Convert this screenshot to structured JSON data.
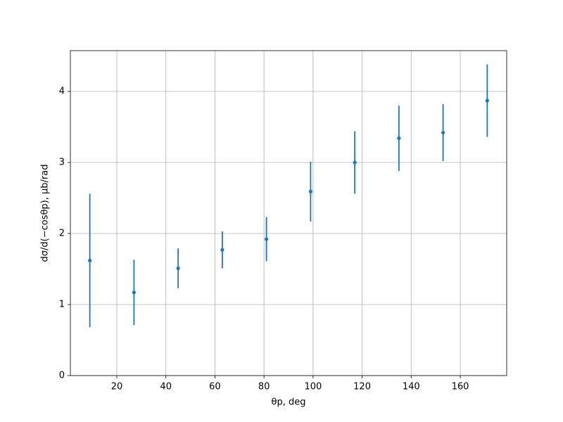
{
  "chart_data": {
    "type": "errorbar",
    "x_label": "θp, deg",
    "y_label": "dσ/d(−cosθp), μb/rad",
    "x": [
      9,
      27,
      45,
      63,
      81,
      99,
      117,
      135,
      153,
      171
    ],
    "series": [
      {
        "color": "#1f77b4",
        "values": [
          1.62,
          1.17,
          1.51,
          1.77,
          1.92,
          2.59,
          3.0,
          3.34,
          3.42,
          3.87
        ],
        "errors": [
          0.94,
          0.46,
          0.28,
          0.26,
          0.31,
          0.42,
          0.44,
          0.46,
          0.4,
          0.51
        ]
      }
    ],
    "xlim": [
      1.07,
      178.93
    ],
    "ylim": [
      0,
      4.574
    ],
    "xticks": [
      20,
      40,
      60,
      80,
      100,
      120,
      140,
      160
    ],
    "yticks": [
      0,
      1,
      2,
      3,
      4
    ],
    "grid": true
  }
}
